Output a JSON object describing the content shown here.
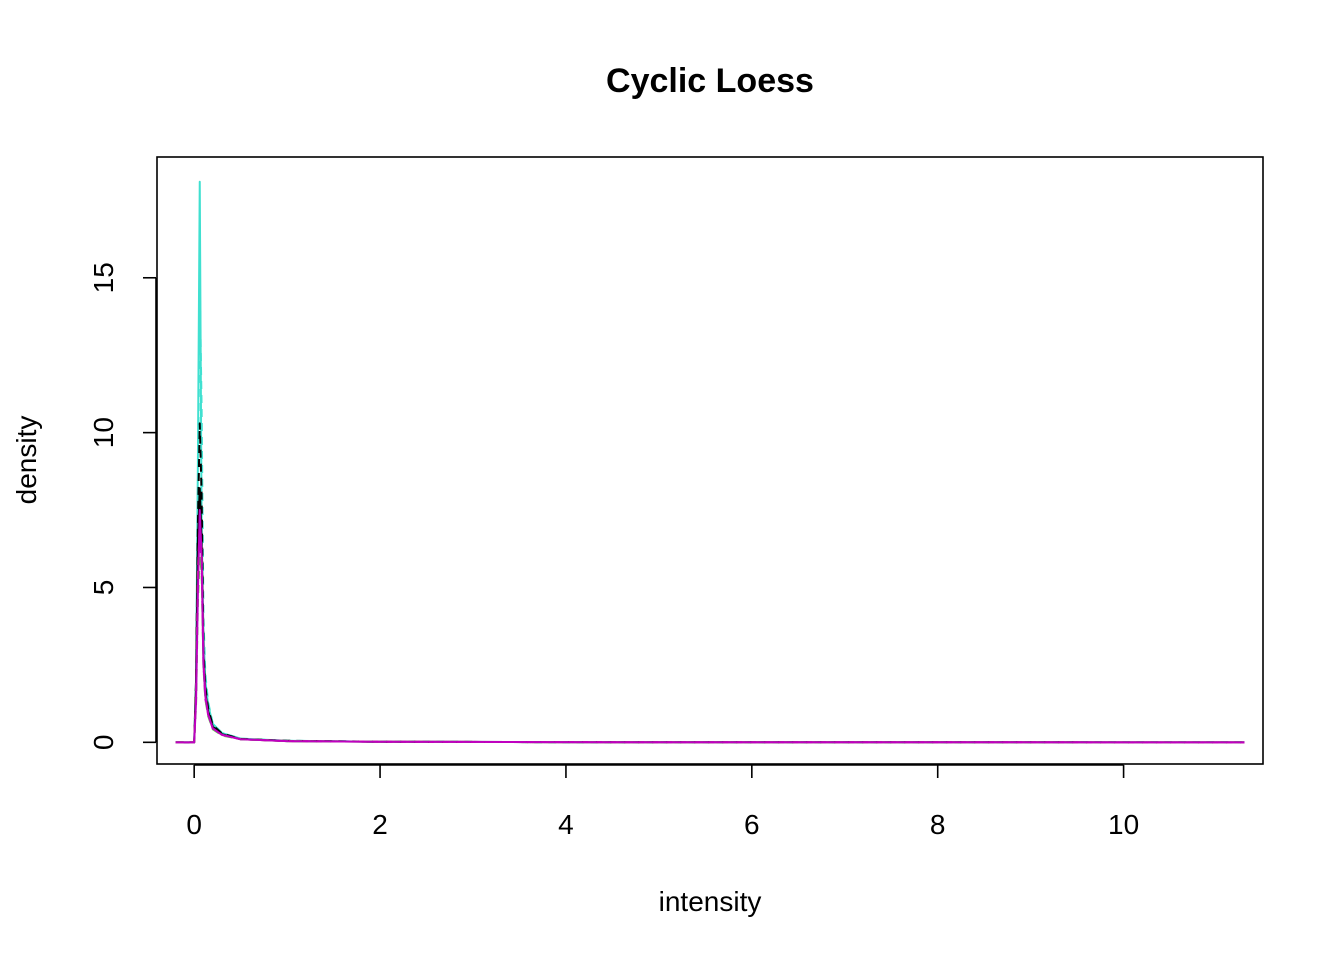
{
  "chart_data": {
    "type": "line",
    "title": "Cyclic Loess",
    "xlabel": "intensity",
    "ylabel": "density",
    "xlim": [
      -0.4,
      11.5
    ],
    "ylim": [
      -0.7,
      18.9
    ],
    "x_ticks": [
      0,
      2,
      4,
      6,
      8,
      10
    ],
    "x_tick_labels": [
      "0",
      "2",
      "4",
      "6",
      "8",
      "10"
    ],
    "y_ticks": [
      0,
      5,
      10,
      15
    ],
    "y_tick_labels": [
      "0",
      "5",
      "10",
      "15"
    ],
    "grid": false,
    "legend": "none",
    "x": [
      -0.2,
      0.0,
      0.02,
      0.04,
      0.06,
      0.08,
      0.1,
      0.12,
      0.15,
      0.2,
      0.3,
      0.5,
      1.0,
      2.0,
      4.0,
      6.0,
      8.0,
      10.0,
      11.3
    ],
    "series": [
      {
        "color": "#40E0D0",
        "dash": "solid",
        "values": [
          0,
          0,
          2.0,
          9.0,
          18.1,
          7.0,
          3.5,
          2.0,
          1.2,
          0.6,
          0.3,
          0.12,
          0.05,
          0.02,
          0.005,
          0.002,
          0.001,
          0.0,
          0.0
        ]
      },
      {
        "color": "#40E0D0",
        "dash": "dashed",
        "values": [
          0,
          0,
          1.5,
          8.0,
          14.8,
          10.8,
          4.0,
          2.2,
          1.3,
          0.6,
          0.3,
          0.12,
          0.05,
          0.02,
          0.005,
          0.002,
          0.001,
          0.0,
          0.0
        ]
      },
      {
        "color": "#000000",
        "dash": "dashed",
        "values": [
          0,
          0,
          2.0,
          7.0,
          10.3,
          8.0,
          3.0,
          1.8,
          1.1,
          0.55,
          0.28,
          0.11,
          0.05,
          0.02,
          0.005,
          0.002,
          0.001,
          0.0,
          0.0
        ]
      },
      {
        "color": "#000000",
        "dash": "solid",
        "values": [
          0,
          0,
          1.8,
          6.5,
          8.2,
          6.5,
          2.8,
          1.6,
          1.0,
          0.5,
          0.26,
          0.1,
          0.04,
          0.02,
          0.005,
          0.002,
          0.001,
          0.0,
          0.0
        ]
      },
      {
        "color": "#DF536B",
        "dash": "dashed",
        "values": [
          0,
          0,
          1.5,
          5.5,
          7.0,
          6.2,
          2.6,
          1.5,
          0.9,
          0.45,
          0.24,
          0.1,
          0.04,
          0.02,
          0.005,
          0.002,
          0.001,
          0.0,
          0.0
        ]
      },
      {
        "color": "#C000C0",
        "dash": "dashed",
        "values": [
          0,
          0,
          1.4,
          5.0,
          6.5,
          5.8,
          2.5,
          1.4,
          0.9,
          0.45,
          0.24,
          0.1,
          0.04,
          0.02,
          0.005,
          0.002,
          0.001,
          0.0,
          0.0
        ]
      },
      {
        "color": "#61D04F",
        "dash": "dashed",
        "values": [
          0,
          0,
          1.2,
          4.5,
          6.0,
          5.5,
          2.4,
          1.4,
          0.85,
          0.42,
          0.22,
          0.1,
          0.04,
          0.02,
          0.005,
          0.002,
          0.001,
          0.0,
          0.0
        ]
      },
      {
        "color": "#C000C0",
        "dash": "solid",
        "values": [
          0,
          0,
          1.3,
          4.8,
          7.5,
          6.0,
          2.5,
          1.5,
          0.9,
          0.45,
          0.24,
          0.1,
          0.04,
          0.02,
          0.005,
          0.002,
          0.001,
          0.0,
          0.0
        ]
      }
    ]
  }
}
